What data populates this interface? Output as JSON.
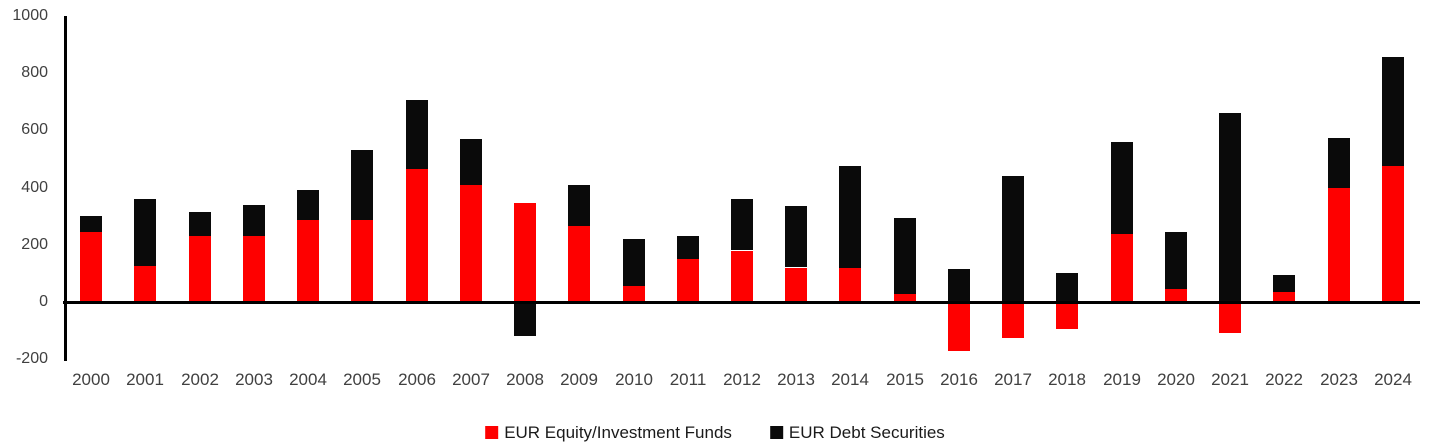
{
  "chart_data": {
    "type": "bar",
    "stacked": true,
    "title": "",
    "xlabel": "",
    "ylabel": "",
    "grid": false,
    "legend_position": "bottom-center",
    "ylim": [
      -200,
      1000
    ],
    "yticks": [
      1000,
      800,
      600,
      400,
      200,
      0,
      -200
    ],
    "categories": [
      "2000",
      "2001",
      "2002",
      "2003",
      "2004",
      "2005",
      "2006",
      "2007",
      "2008",
      "2009",
      "2010",
      "2011",
      "2012",
      "2013",
      "2014",
      "2015",
      "2016",
      "2017",
      "2018",
      "2019",
      "2020",
      "2021",
      "2022",
      "2023",
      "2024"
    ],
    "series": [
      {
        "name": "EUR Equity/Investment Funds",
        "color": "#fe0000",
        "values": [
          245,
          125,
          230,
          230,
          285,
          285,
          465,
          410,
          345,
          265,
          55,
          150,
          180,
          120,
          120,
          30,
          -170,
          -125,
          -95,
          240,
          45,
          -110,
          35,
          400,
          475
        ]
      },
      {
        "name": "EUR Debt Securities",
        "color": "#0a0a0a",
        "values": [
          55,
          235,
          85,
          110,
          105,
          245,
          240,
          160,
          -120,
          145,
          165,
          80,
          180,
          215,
          355,
          265,
          115,
          440,
          100,
          320,
          200,
          660,
          60,
          175,
          380
        ]
      }
    ],
    "axis_color": "#000000",
    "tick_label_color": "#404040"
  }
}
